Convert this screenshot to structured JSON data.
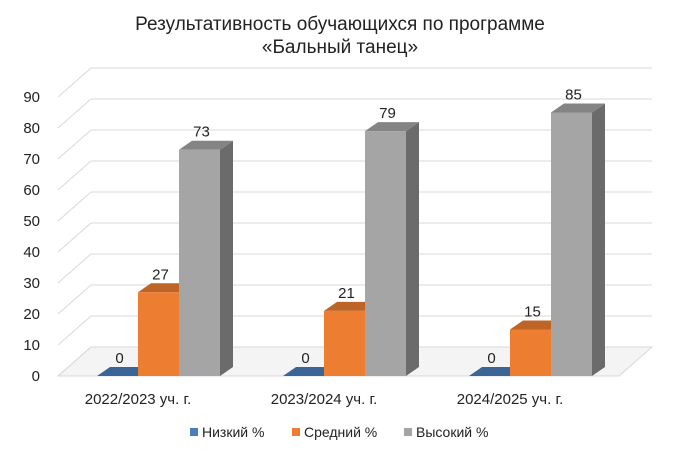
{
  "chart_data": {
    "type": "bar",
    "title": "Результативность обучающихся по программе",
    "subtitle": "«Бальный танец»",
    "categories": [
      "2022/2023 уч. г.",
      "2023/2024 уч. г.",
      "2024/2025 уч. г."
    ],
    "series": [
      {
        "name": "Низкий %",
        "values": [
          0,
          0,
          0
        ],
        "color": "#4a7ebb"
      },
      {
        "name": "Средний %",
        "values": [
          27,
          21,
          15
        ],
        "color": "#ed7d31"
      },
      {
        "name": "Высокий %",
        "values": [
          73,
          79,
          85
        ],
        "color": "#a5a5a5"
      }
    ],
    "ylim": [
      0,
      90
    ],
    "yticks": [
      "0",
      "10",
      "20",
      "30",
      "40",
      "50",
      "60",
      "70",
      "80",
      "90"
    ],
    "grid": true,
    "legend": "bottom",
    "style": "3d"
  }
}
